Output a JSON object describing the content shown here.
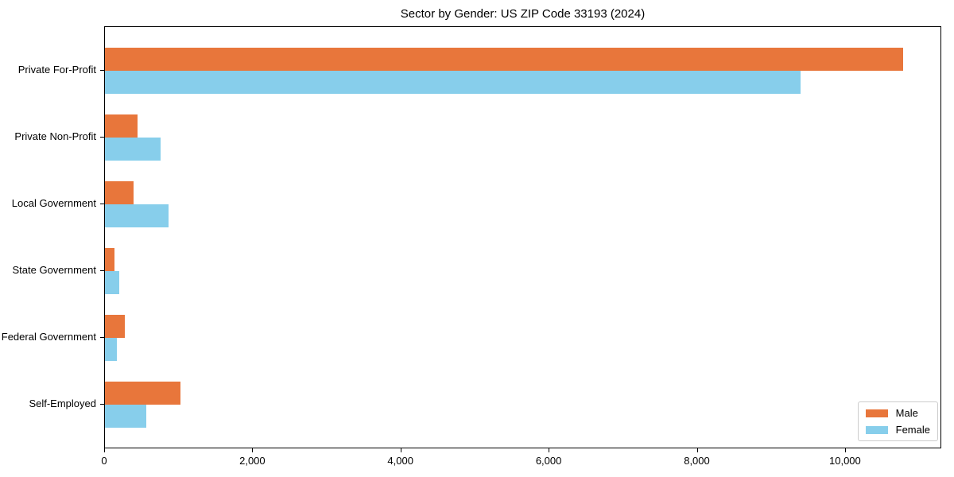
{
  "chart_data": {
    "type": "bar",
    "orientation": "horizontal",
    "title": "Sector by Gender: US ZIP Code 33193 (2024)",
    "xlabel": "",
    "ylabel": "",
    "grid": false,
    "categories": [
      "Private For-Profit",
      "Private Non-Profit",
      "Local Government",
      "State Government",
      "Federal Government",
      "Self-Employed"
    ],
    "series": [
      {
        "name": "Male",
        "color": "#e8763b",
        "values": [
          10770,
          440,
          390,
          130,
          270,
          1020
        ]
      },
      {
        "name": "Female",
        "color": "#87ceeb",
        "values": [
          9390,
          750,
          860,
          190,
          160,
          560
        ]
      }
    ],
    "xlim": [
      0,
      11300
    ],
    "xticks": [
      {
        "value": 0,
        "label": "0"
      },
      {
        "value": 2000,
        "label": "2,000"
      },
      {
        "value": 4000,
        "label": "4,000"
      },
      {
        "value": 6000,
        "label": "6,000"
      },
      {
        "value": 8000,
        "label": "8,000"
      },
      {
        "value": 10000,
        "label": "10,000"
      }
    ],
    "legend_position": "lower right"
  },
  "colors": {
    "background": "#ffffff",
    "axis": "#000000",
    "text": "#000000",
    "legend_border": "#cccccc"
  }
}
